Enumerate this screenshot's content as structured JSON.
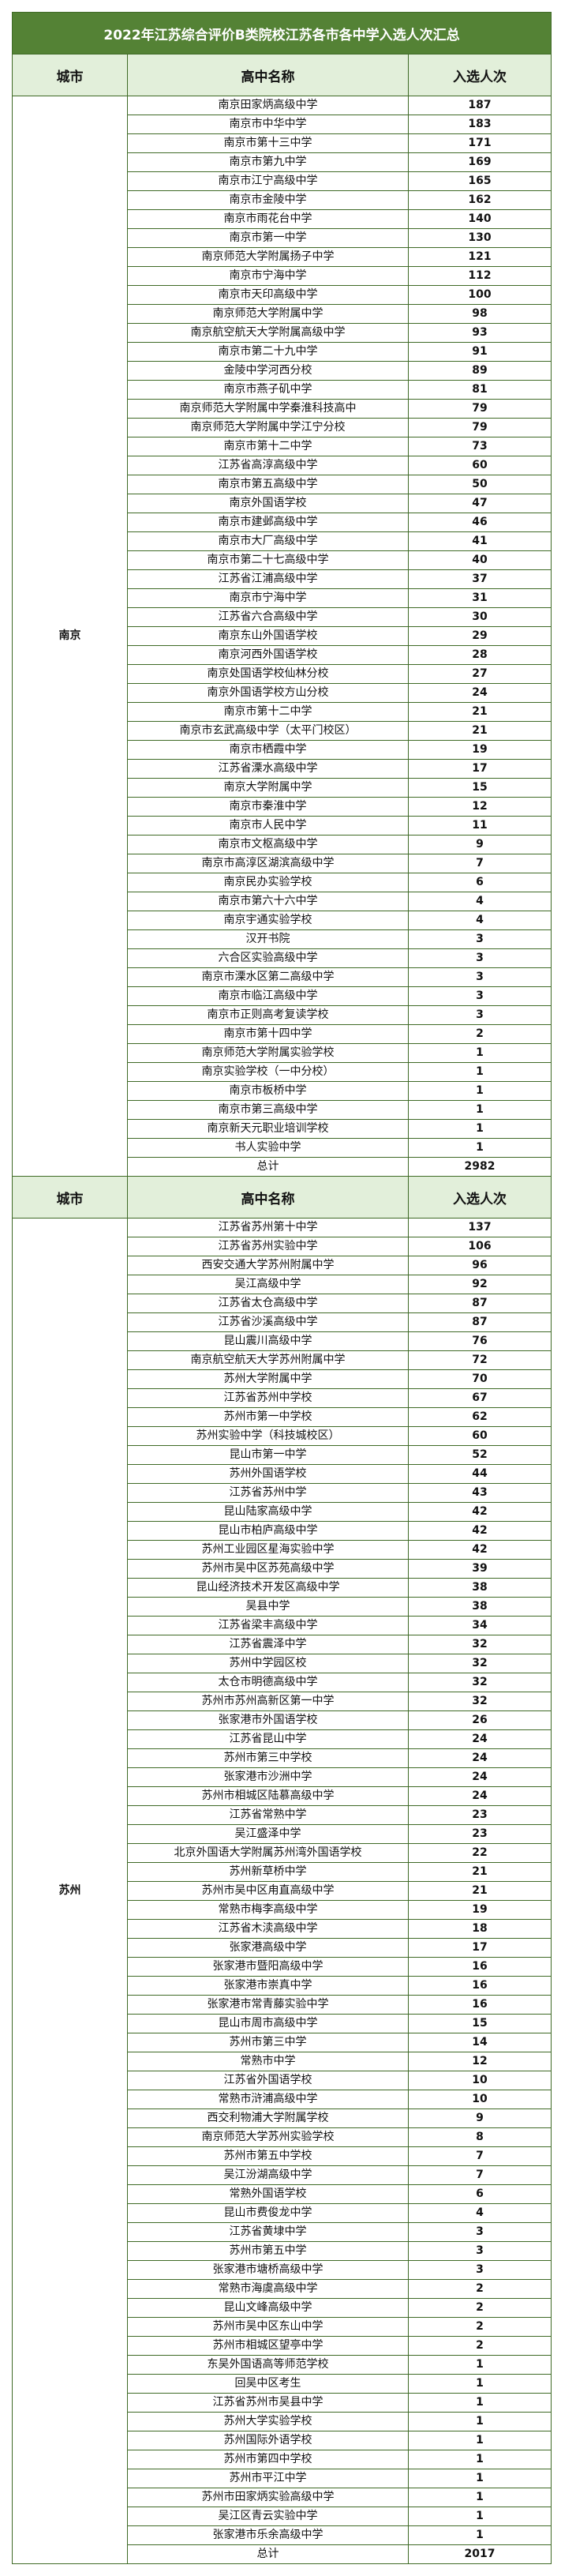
{
  "title": "2022年江苏综合评价B类院校江苏各市各中学入选人次汇总",
  "colors": {
    "title_bg": "#548235",
    "header_bg": "#e2efda",
    "border": "#3f6a26"
  },
  "headers": {
    "city": "城市",
    "school": "高中名称",
    "count": "入选人次"
  },
  "groups": [
    {
      "city": "南京",
      "total_label": "总计",
      "total": "2982",
      "rows": [
        [
          "南京田家炳高级中学",
          "187"
        ],
        [
          "南京市中华中学",
          "183"
        ],
        [
          "南京市第十三中学",
          "171"
        ],
        [
          "南京市第九中学",
          "169"
        ],
        [
          "南京市江宁高级中学",
          "165"
        ],
        [
          "南京市金陵中学",
          "162"
        ],
        [
          "南京市雨花台中学",
          "140"
        ],
        [
          "南京市第一中学",
          "130"
        ],
        [
          "南京师范大学附属扬子中学",
          "121"
        ],
        [
          "南京市宁海中学",
          "112"
        ],
        [
          "南京市天印高级中学",
          "100"
        ],
        [
          "南京师范大学附属中学",
          "98"
        ],
        [
          "南京航空航天大学附属高级中学",
          "93"
        ],
        [
          "南京市第二十九中学",
          "91"
        ],
        [
          "金陵中学河西分校",
          "89"
        ],
        [
          "南京市燕子矶中学",
          "81"
        ],
        [
          "南京师范大学附属中学秦淮科技高中",
          "79"
        ],
        [
          "南京师范大学附属中学江宁分校",
          "79"
        ],
        [
          "南京市第十二中学",
          "73"
        ],
        [
          "江苏省高淳高级中学",
          "60"
        ],
        [
          "南京市第五高级中学",
          "50"
        ],
        [
          "南京外国语学校",
          "47"
        ],
        [
          "南京市建邺高级中学",
          "46"
        ],
        [
          "南京市大厂高级中学",
          "41"
        ],
        [
          "南京市第二十七高级中学",
          "40"
        ],
        [
          "江苏省江浦高级中学",
          "37"
        ],
        [
          "南京市宁海中学",
          "31"
        ],
        [
          "江苏省六合高级中学",
          "30"
        ],
        [
          "南京东山外国语学校",
          "29"
        ],
        [
          "南京河西外国语学校",
          "28"
        ],
        [
          "南京处国语学校仙林分校",
          "27"
        ],
        [
          "南京外国语学校方山分校",
          "24"
        ],
        [
          "南京市第十二中学",
          "21"
        ],
        [
          "南京市玄武高级中学（太平门校区）",
          "21"
        ],
        [
          "南京市栖霞中学",
          "19"
        ],
        [
          "江苏省溧水高级中学",
          "17"
        ],
        [
          "南京大学附属中学",
          "15"
        ],
        [
          "南京市秦淮中学",
          "12"
        ],
        [
          "南京市人民中学",
          "11"
        ],
        [
          "南京市文枢高级中学",
          "9"
        ],
        [
          "南京市高淳区湖滨高级中学",
          "7"
        ],
        [
          "南京民办实验学校",
          "6"
        ],
        [
          "南京市第六十六中学",
          "4"
        ],
        [
          "南京宇通实验学校",
          "4"
        ],
        [
          "汉开书院",
          "3"
        ],
        [
          "六合区实验高级中学",
          "3"
        ],
        [
          "南京市溧水区第二高级中学",
          "3"
        ],
        [
          "南京市临江高级中学",
          "3"
        ],
        [
          "南京市正则高考复读学校",
          "3"
        ],
        [
          "南京市第十四中学",
          "2"
        ],
        [
          "南京师范大学附属实验学校",
          "1"
        ],
        [
          "南京实验学校（一中分校）",
          "1"
        ],
        [
          "南京市板桥中学",
          "1"
        ],
        [
          "南京市第三高级中学",
          "1"
        ],
        [
          "南京新天元职业培训学校",
          "1"
        ],
        [
          "书人实验中学",
          "1"
        ]
      ]
    },
    {
      "city": "苏州",
      "total_label": "总计",
      "total": "2017",
      "rows": [
        [
          "江苏省苏州第十中学",
          "137"
        ],
        [
          "江苏省苏州实验中学",
          "106"
        ],
        [
          "西安交通大学苏州附属中学",
          "96"
        ],
        [
          "吴江高级中学",
          "92"
        ],
        [
          "江苏省太仓高级中学",
          "87"
        ],
        [
          "江苏省沙溪高级中学",
          "87"
        ],
        [
          "昆山震川高级中学",
          "76"
        ],
        [
          "南京航空航天大学苏州附属中学",
          "72"
        ],
        [
          "苏州大学附属中学",
          "70"
        ],
        [
          "江苏省苏州中学校",
          "67"
        ],
        [
          "苏州市第一中学校",
          "62"
        ],
        [
          "苏州实验中学（科技城校区）",
          "60"
        ],
        [
          "昆山市第一中学",
          "52"
        ],
        [
          "苏州外国语学校",
          "44"
        ],
        [
          "江苏省苏州中学",
          "43"
        ],
        [
          "昆山陆家高级中学",
          "42"
        ],
        [
          "昆山市柏庐高级中学",
          "42"
        ],
        [
          "苏州工业园区星海实验中学",
          "42"
        ],
        [
          "苏州市吴中区苏苑高级中学",
          "39"
        ],
        [
          "昆山经济技术开发区高级中学",
          "38"
        ],
        [
          "吴县中学",
          "38"
        ],
        [
          "江苏省梁丰高级中学",
          "34"
        ],
        [
          "江苏省震泽中学",
          "32"
        ],
        [
          "苏州中学园区校",
          "32"
        ],
        [
          "太仓市明德高级中学",
          "32"
        ],
        [
          "苏州市苏州高新区第一中学",
          "32"
        ],
        [
          "张家港市外国语学校",
          "26"
        ],
        [
          "江苏省昆山中学",
          "24"
        ],
        [
          "苏州市第三中学校",
          "24"
        ],
        [
          "张家港市沙洲中学",
          "24"
        ],
        [
          "苏州市相城区陆慕高级中学",
          "24"
        ],
        [
          "江苏省常熟中学",
          "23"
        ],
        [
          "吴江盛泽中学",
          "23"
        ],
        [
          "北京外国语大学附属苏州湾外国语学校",
          "22"
        ],
        [
          "苏州新草桥中学",
          "21"
        ],
        [
          "苏州市吴中区甪直高级中学",
          "21"
        ],
        [
          "常熟市梅李高级中学",
          "19"
        ],
        [
          "江苏省木渎高级中学",
          "18"
        ],
        [
          "张家港高级中学",
          "17"
        ],
        [
          "张家港市暨阳高级中学",
          "16"
        ],
        [
          "张家港市崇真中学",
          "16"
        ],
        [
          "张家港市常青藤实验中学",
          "16"
        ],
        [
          "昆山市周市高级中学",
          "15"
        ],
        [
          "苏州市第三中学",
          "14"
        ],
        [
          "常熟市中学",
          "12"
        ],
        [
          "江苏省外国语学校",
          "10"
        ],
        [
          "常熟市浒浦高级中学",
          "10"
        ],
        [
          "西交利物浦大学附属学校",
          "9"
        ],
        [
          "南京师范大学苏州实验学校",
          "8"
        ],
        [
          "苏州市第五中学校",
          "7"
        ],
        [
          "吴江汾湖高级中学",
          "7"
        ],
        [
          "常熟外国语学校",
          "6"
        ],
        [
          "昆山市费俊龙中学",
          "4"
        ],
        [
          "江苏省黄埭中学",
          "3"
        ],
        [
          "苏州市第五中学",
          "3"
        ],
        [
          "张家港市塘桥高级中学",
          "3"
        ],
        [
          "常熟市海虞高级中学",
          "2"
        ],
        [
          "昆山文峰高级中学",
          "2"
        ],
        [
          "苏州市吴中区东山中学",
          "2"
        ],
        [
          "苏州市相城区望亭中学",
          "2"
        ],
        [
          "东吴外国语高等师范学校",
          "1"
        ],
        [
          "回吴中区考生",
          "1"
        ],
        [
          "江苏省苏州市吴县中学",
          "1"
        ],
        [
          "苏州大学实验学校",
          "1"
        ],
        [
          "苏州国际外语学校",
          "1"
        ],
        [
          "苏州市第四中学校",
          "1"
        ],
        [
          "苏州市平江中学",
          "1"
        ],
        [
          "苏州市田家炳实验高级中学",
          "1"
        ],
        [
          "吴江区青云实验中学",
          "1"
        ],
        [
          "张家港市乐余高级中学",
          "1"
        ]
      ]
    }
  ]
}
